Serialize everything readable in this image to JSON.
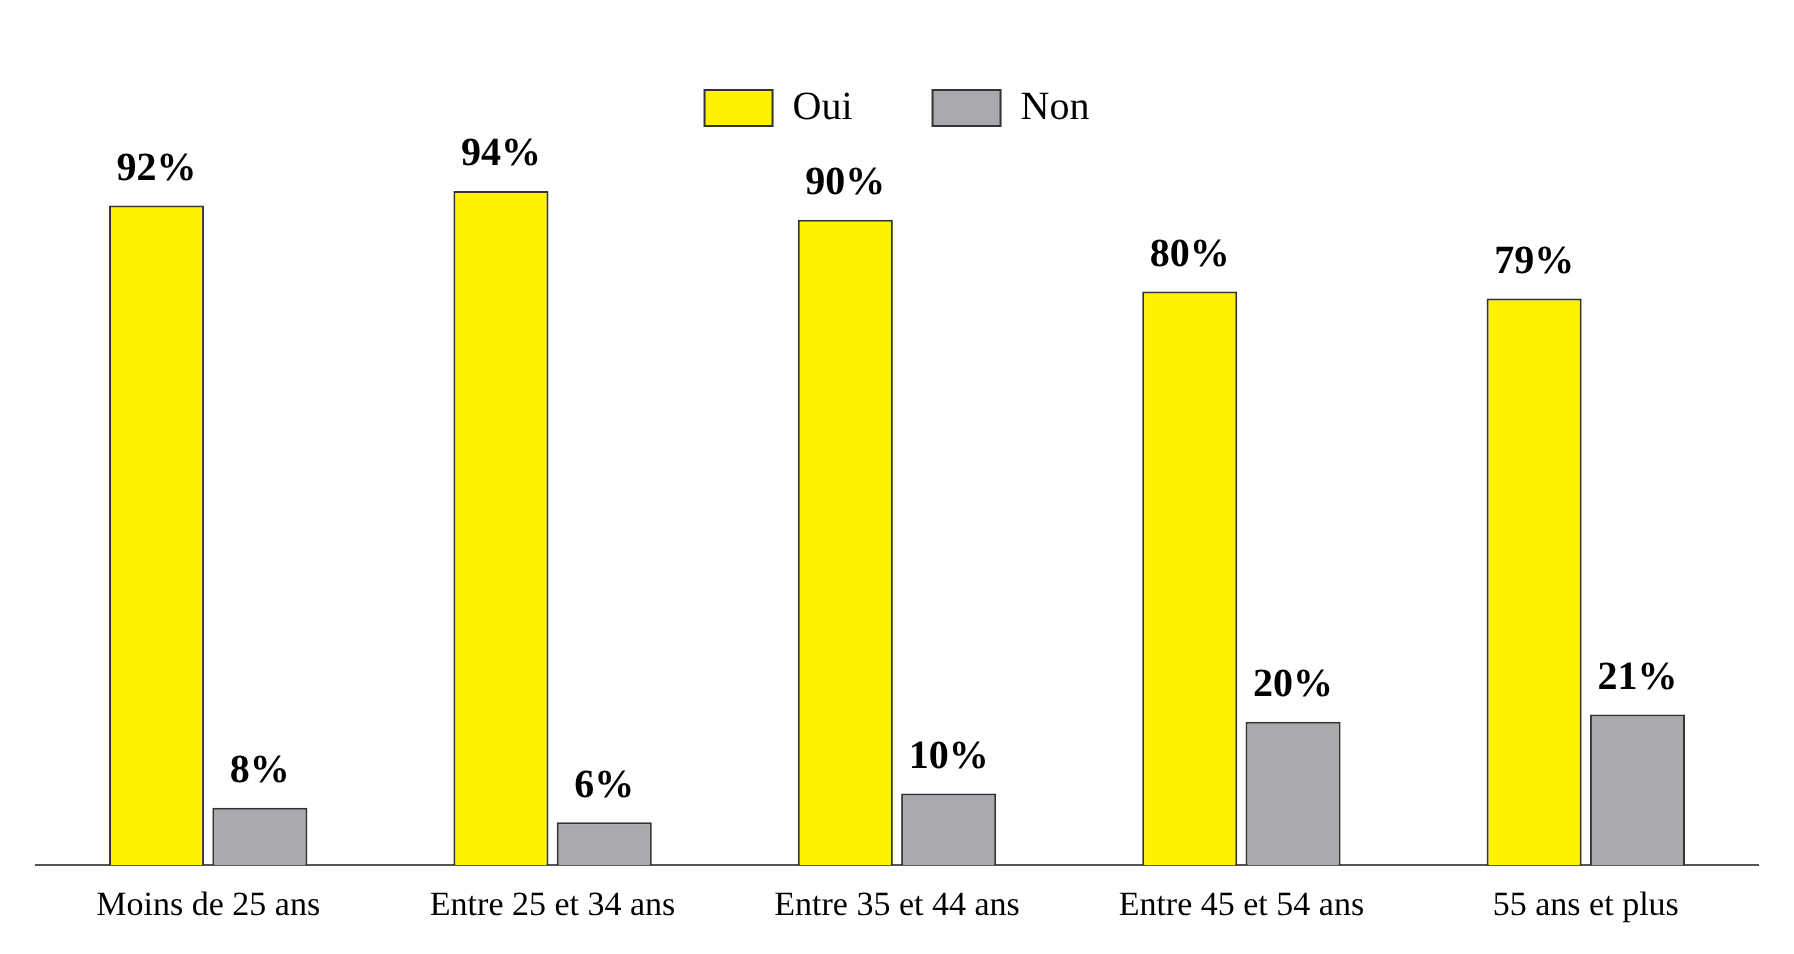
{
  "chart_data": {
    "type": "bar",
    "categories": [
      "Moins de 25 ans",
      "Entre 25 et 34 ans",
      "Entre 35 et 44 ans",
      "Entre 45 et 54 ans",
      "55 ans et plus"
    ],
    "series": [
      {
        "name": "Oui",
        "color": "#fff200",
        "values": [
          92,
          94,
          90,
          80,
          79
        ],
        "value_labels": [
          "92%",
          "94%",
          "90%",
          "80%",
          "79%"
        ]
      },
      {
        "name": "Non",
        "color": "#a7a9ac",
        "values": [
          8,
          6,
          10,
          20,
          21
        ],
        "value_labels": [
          "8%",
          "6%",
          "10%",
          "20%",
          "21%"
        ]
      }
    ],
    "legend": "top",
    "grid": false,
    "tick_labels": "x"
  }
}
